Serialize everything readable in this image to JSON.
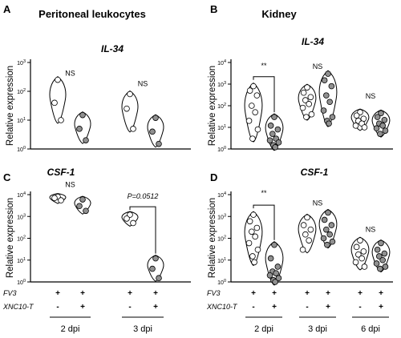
{
  "chart_data": [
    {
      "id": "A",
      "type": "violin-scatter",
      "panel_letter": "A",
      "title": "Peritoneal leukocytes",
      "gene": "IL-34",
      "ylabel": "Relative expression",
      "yscale": "log",
      "ylim": [
        1,
        1000
      ],
      "ticks": [
        {
          "v": 1,
          "exp": "0"
        },
        {
          "v": 10,
          "exp": "1"
        },
        {
          "v": 100,
          "exp": "2"
        },
        {
          "v": 1000,
          "exp": "3"
        }
      ],
      "groups": [
        {
          "timepoint": 2,
          "treatment": "FV3",
          "color": "#ffffff",
          "values": [
            250,
            40,
            10
          ]
        },
        {
          "timepoint": 2,
          "treatment": "FV3+XNC10-T",
          "color": "#909090",
          "values": [
            15,
            5,
            2
          ]
        },
        {
          "timepoint": 3,
          "treatment": "FV3",
          "color": "#ffffff",
          "values": [
            80,
            25,
            5
          ]
        },
        {
          "timepoint": 3,
          "treatment": "FV3+XNC10-T",
          "color": "#909090",
          "values": [
            12,
            4,
            1.5
          ]
        }
      ],
      "annotations": [
        {
          "timepoint": 2,
          "text": "NS",
          "y": 350
        },
        {
          "timepoint": 3,
          "text": "NS",
          "y": 150
        }
      ]
    },
    {
      "id": "B",
      "type": "violin-scatter",
      "panel_letter": "B",
      "title": "Kidney",
      "gene": "IL-34",
      "ylabel": "Relative expression",
      "yscale": "log",
      "ylim": [
        1,
        10000
      ],
      "ticks": [
        {
          "v": 1,
          "exp": "0"
        },
        {
          "v": 10,
          "exp": "1"
        },
        {
          "v": 100,
          "exp": "2"
        },
        {
          "v": 1000,
          "exp": "3"
        },
        {
          "v": 10000,
          "exp": "4"
        }
      ],
      "groups": [
        {
          "timepoint": 2,
          "treatment": "FV3",
          "color": "#ffffff",
          "values": [
            800,
            500,
            300,
            100,
            50,
            20,
            8,
            3
          ]
        },
        {
          "timepoint": 2,
          "treatment": "FV3+XNC10-T",
          "color": "#909090",
          "values": [
            30,
            12,
            8,
            5,
            3,
            2.5,
            2,
            1.5,
            1.2
          ]
        },
        {
          "timepoint": 3,
          "treatment": "FV3",
          "color": "#ffffff",
          "values": [
            700,
            400,
            250,
            180,
            120,
            80,
            40,
            30
          ]
        },
        {
          "timepoint": 3,
          "treatment": "FV3+XNC10-T",
          "color": "#909090",
          "values": [
            3000,
            1500,
            800,
            300,
            150,
            60,
            30,
            20,
            15
          ]
        },
        {
          "timepoint": 6,
          "treatment": "FV3",
          "color": "#ffffff",
          "values": [
            50,
            35,
            25,
            20,
            15,
            12,
            10
          ]
        },
        {
          "timepoint": 6,
          "treatment": "FV3+XNC10-T",
          "color": "#909090",
          "values": [
            45,
            30,
            22,
            15,
            12,
            9,
            7,
            5
          ]
        }
      ],
      "annotations": [
        {
          "timepoint": 2,
          "text": "**",
          "y": 5500,
          "bracket": true,
          "bracket_y": 2200
        },
        {
          "timepoint": 3,
          "text": "NS",
          "y": 5000
        },
        {
          "timepoint": 6,
          "text": "NS",
          "y": 220
        }
      ]
    },
    {
      "id": "C",
      "type": "violin-scatter",
      "panel_letter": "C",
      "gene": "CSF-1",
      "ylabel": "Relative expression",
      "yscale": "log",
      "ylim": [
        1,
        10000
      ],
      "ticks": [
        {
          "v": 1,
          "exp": "0"
        },
        {
          "v": 10,
          "exp": "1"
        },
        {
          "v": 100,
          "exp": "2"
        },
        {
          "v": 1000,
          "exp": "3"
        },
        {
          "v": 10000,
          "exp": "4"
        }
      ],
      "groups": [
        {
          "timepoint": 2,
          "treatment": "FV3",
          "color": "#ffffff",
          "values": [
            8000,
            7000,
            5500
          ]
        },
        {
          "timepoint": 2,
          "treatment": "FV3+XNC10-T",
          "color": "#909090",
          "values": [
            6000,
            3000,
            1800
          ]
        },
        {
          "timepoint": 3,
          "treatment": "FV3",
          "color": "#ffffff",
          "values": [
            1200,
            800,
            500
          ]
        },
        {
          "timepoint": 3,
          "treatment": "FV3+XNC10-T",
          "color": "#909090",
          "values": [
            12,
            4,
            1.5
          ]
        }
      ],
      "annotations": [
        {
          "timepoint": 2,
          "text": "NS",
          "y": 22000
        },
        {
          "timepoint": 3,
          "text": "P=0.0512",
          "y": 6500,
          "bracket": true,
          "bracket_y": 2800,
          "italic": true
        }
      ]
    },
    {
      "id": "D",
      "type": "violin-scatter",
      "panel_letter": "D",
      "gene": "CSF-1",
      "ylabel": "Relative expression",
      "yscale": "log",
      "ylim": [
        1,
        10000
      ],
      "ticks": [
        {
          "v": 1,
          "exp": "0"
        },
        {
          "v": 10,
          "exp": "1"
        },
        {
          "v": 100,
          "exp": "2"
        },
        {
          "v": 1000,
          "exp": "3"
        },
        {
          "v": 10000,
          "exp": "4"
        }
      ],
      "groups": [
        {
          "timepoint": 2,
          "treatment": "FV3",
          "color": "#ffffff",
          "values": [
            1200,
            600,
            300,
            200,
            120,
            60,
            30,
            15,
            8
          ]
        },
        {
          "timepoint": 2,
          "treatment": "FV3+XNC10-T",
          "color": "#909090",
          "values": [
            50,
            12,
            5,
            3,
            2.5,
            2,
            1.5,
            1.2,
            1
          ]
        },
        {
          "timepoint": 3,
          "treatment": "FV3",
          "color": "#ffffff",
          "values": [
            900,
            400,
            250,
            150,
            80,
            30
          ]
        },
        {
          "timepoint": 3,
          "treatment": "FV3+XNC10-T",
          "color": "#909090",
          "values": [
            1500,
            700,
            400,
            250,
            150,
            100,
            70,
            50
          ]
        },
        {
          "timepoint": 6,
          "treatment": "FV3",
          "color": "#ffffff",
          "values": [
            80,
            40,
            25,
            18,
            12,
            8,
            5
          ]
        },
        {
          "timepoint": 6,
          "treatment": "FV3+XNC10-T",
          "color": "#909090",
          "values": [
            60,
            30,
            20,
            15,
            10,
            7,
            5,
            4
          ]
        }
      ],
      "annotations": [
        {
          "timepoint": 2,
          "text": "**",
          "y": 9000,
          "bracket": true,
          "bracket_y": 3300
        },
        {
          "timepoint": 3,
          "text": "NS",
          "y": 3200
        },
        {
          "timepoint": 6,
          "text": "NS",
          "y": 200
        }
      ]
    }
  ],
  "treatment_rows": [
    {
      "label": "FV3",
      "signs": [
        "+",
        "+"
      ]
    },
    {
      "label": "XNC10-T",
      "signs": [
        "-",
        "+"
      ]
    }
  ],
  "timepoint_labels": {
    "C": [
      {
        "timepoint": 2,
        "label": "2 dpi"
      },
      {
        "timepoint": 3,
        "label": "3 dpi"
      }
    ],
    "D": [
      {
        "timepoint": 2,
        "label": "2 dpi"
      },
      {
        "timepoint": 3,
        "label": "3 dpi"
      },
      {
        "timepoint": 6,
        "label": "6 dpi"
      }
    ]
  },
  "colors": {
    "fv3": "#ffffff",
    "fv3_xnc10t": "#909090",
    "outline": "#000000"
  }
}
